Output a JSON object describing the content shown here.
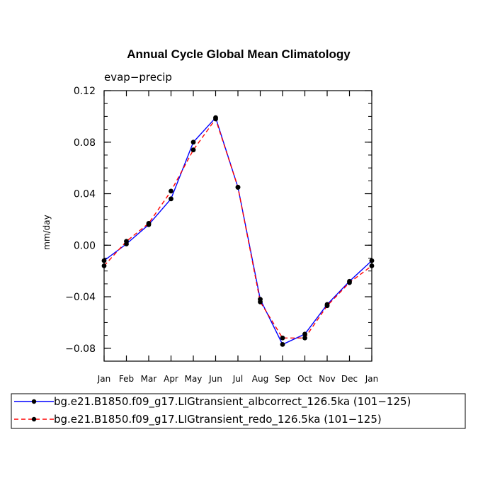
{
  "chart_data": {
    "type": "line",
    "title": "Annual Cycle Global Mean Climatology",
    "subtitle": "evap−precip",
    "xlabel": "",
    "ylabel": "mm/day",
    "categories": [
      "Jan",
      "Feb",
      "Mar",
      "Apr",
      "May",
      "Jun",
      "Jul",
      "Aug",
      "Sep",
      "Oct",
      "Nov",
      "Dec",
      "Jan"
    ],
    "ylim": [
      -0.09,
      0.12
    ],
    "yticks": [
      -0.08,
      -0.04,
      0.0,
      0.04,
      0.08,
      0.12
    ],
    "ytick_labels": [
      "−0.08",
      "−0.04",
      "0.00",
      "0.04",
      "0.08",
      "0.12"
    ],
    "series": [
      {
        "name": "bg.e21.B1850.f09_g17.LIGtransient_albcorrect_126.5ka (101−125)",
        "color": "#0000ff",
        "dash": "solid",
        "marker": "circle",
        "values": [
          -0.012,
          0.001,
          0.016,
          0.036,
          0.08,
          0.099,
          0.045,
          -0.042,
          -0.077,
          -0.069,
          -0.046,
          -0.028,
          -0.012
        ]
      },
      {
        "name": "bg.e21.B1850.f09_g17.LIGtransient_redo_126.5ka (101−125)",
        "color": "#ff0000",
        "dash": "dashed",
        "marker": "circle",
        "values": [
          -0.016,
          0.003,
          0.017,
          0.042,
          0.074,
          0.098,
          0.045,
          -0.044,
          -0.072,
          -0.072,
          -0.047,
          -0.029,
          -0.016
        ]
      }
    ]
  }
}
